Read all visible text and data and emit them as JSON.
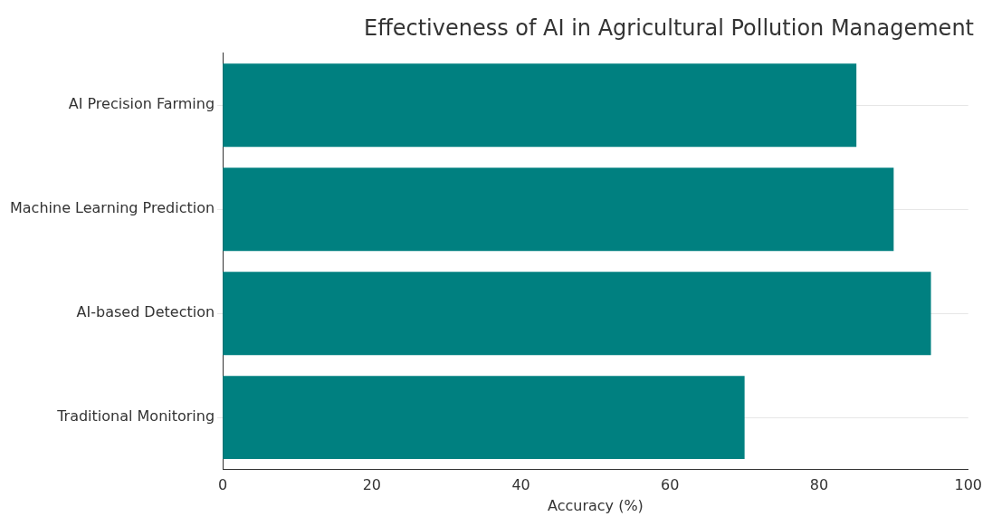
{
  "chart_data": {
    "type": "bar",
    "orientation": "horizontal",
    "title": "Effectiveness of AI in Agricultural Pollution Management",
    "xlabel": "Accuracy (%)",
    "categories": [
      "AI Precision Farming",
      "Machine Learning Prediction",
      "AI-based Detection",
      "Traditional Monitoring"
    ],
    "values": [
      85,
      90,
      95,
      70
    ],
    "color": "#008080",
    "xlim": [
      0,
      100
    ],
    "xticks": [
      0,
      20,
      40,
      60,
      80,
      100
    ],
    "grid": "y"
  }
}
